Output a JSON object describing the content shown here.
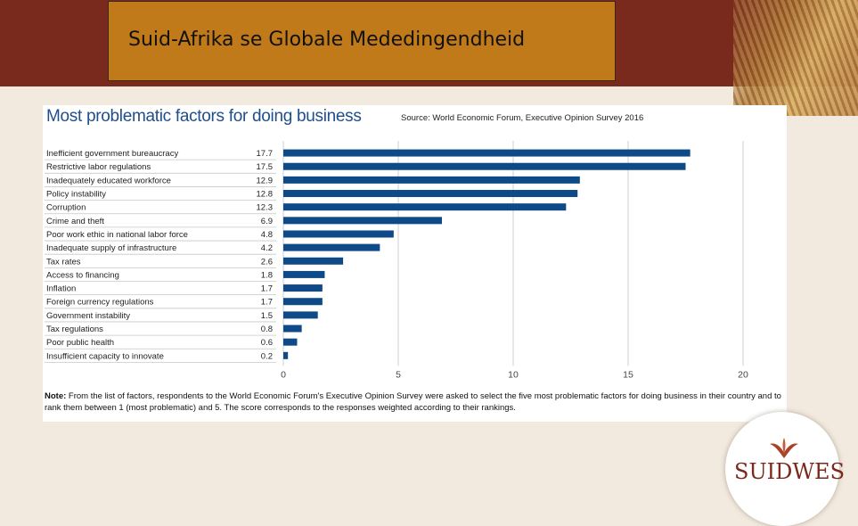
{
  "slide": {
    "title": "Suid-Afrika se Globale Mededingendheid",
    "logo_text": "SUIDWES",
    "accent_color": "#7a2a1c",
    "title_box_color": "#c07a1a"
  },
  "chart_data": {
    "type": "bar",
    "orientation": "horizontal",
    "title": "Most problematic factors for doing business",
    "source": "Source: World Economic Forum, Executive Opinion Survey 2016",
    "categories": [
      "Inefficient government bureaucracy",
      "Restrictive labor regulations",
      "Inadequately educated workforce",
      "Policy instability",
      "Corruption",
      "Crime and theft",
      "Poor work ethic in national labor force",
      "Inadequate supply of infrastructure",
      "Tax rates",
      "Access to financing",
      "Inflation",
      "Foreign currency regulations",
      "Government instability",
      "Tax regulations",
      "Poor public health",
      "Insufficient capacity to innovate"
    ],
    "values": [
      17.7,
      17.5,
      12.9,
      12.8,
      12.3,
      6.9,
      4.8,
      4.2,
      2.6,
      1.8,
      1.7,
      1.7,
      1.5,
      0.8,
      0.6,
      0.2
    ],
    "value_labels": [
      "17.7",
      "17.5",
      "12.9",
      "12.8",
      "12.3",
      "6.9",
      "4.8",
      "4.2",
      "2.6",
      "1.8",
      "1.7",
      "1.7",
      "1.5",
      "0.8",
      "0.6",
      "0.2"
    ],
    "xlim": [
      0,
      20
    ],
    "xticks": [
      0,
      5,
      10,
      15,
      20
    ],
    "xtick_labels": [
      "0",
      "5",
      "10",
      "15",
      "20"
    ],
    "grid": true,
    "bar_color": "#0d4a87",
    "note_label": "Note:",
    "note": "From the list of factors, respondents to the World Economic Forum's Executive Opinion Survey were asked to select the five most problematic factors for doing business in their country and to rank them between 1 (most problematic) and 5. The score corresponds to the responses weighted according to their rankings."
  }
}
